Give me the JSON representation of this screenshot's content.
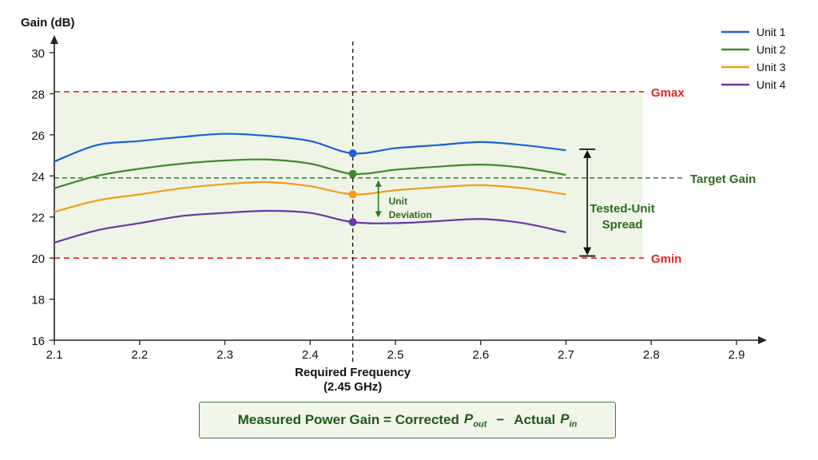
{
  "chart_data": {
    "type": "line",
    "title": "",
    "ylabel": "Gain (dB)",
    "xlabel": "Required Frequency",
    "xlabel_sub": "(2.45 GHz)",
    "xlim": [
      2.1,
      2.9
    ],
    "ylim": [
      16,
      30
    ],
    "xticks": [
      "2.1",
      "2.2",
      "2.3",
      "2.4",
      "2.5",
      "2.6",
      "2.7",
      "2.8",
      "2.9"
    ],
    "yticks": [
      "16",
      "18",
      "20",
      "22",
      "24",
      "26",
      "28",
      "30"
    ],
    "x": [
      2.1,
      2.15,
      2.2,
      2.25,
      2.3,
      2.35,
      2.4,
      2.45,
      2.5,
      2.55,
      2.6,
      2.65,
      2.7
    ],
    "series": [
      {
        "name": "Unit 1",
        "color": "#1f5fd6",
        "values": [
          24.7,
          25.5,
          25.7,
          25.9,
          26.05,
          25.95,
          25.7,
          25.1,
          25.35,
          25.5,
          25.65,
          25.5,
          25.25
        ]
      },
      {
        "name": "Unit 2",
        "color": "#3f8a2a",
        "values": [
          23.4,
          24.0,
          24.35,
          24.6,
          24.75,
          24.8,
          24.6,
          24.1,
          24.3,
          24.45,
          24.55,
          24.4,
          24.05
        ]
      },
      {
        "name": "Unit 3",
        "color": "#f59a1c",
        "values": [
          22.25,
          22.8,
          23.1,
          23.4,
          23.6,
          23.7,
          23.5,
          23.1,
          23.3,
          23.45,
          23.55,
          23.4,
          23.1
        ]
      },
      {
        "name": "Unit 4",
        "color": "#6a35a8",
        "values": [
          20.75,
          21.35,
          21.7,
          22.05,
          22.2,
          22.3,
          22.2,
          21.75,
          21.7,
          21.8,
          21.9,
          21.7,
          21.25
        ]
      }
    ],
    "marker_x": 2.45,
    "reference_lines": {
      "gmax": {
        "label": "Gmax",
        "value": 28.1,
        "color": "#e32424"
      },
      "gmin": {
        "label": "Gmin",
        "value": 20.0,
        "color": "#e32424"
      },
      "target": {
        "label": "Target Gain",
        "value": 23.9,
        "color": "#2e6a1f"
      }
    },
    "band": {
      "from": 20.0,
      "to": 28.1,
      "x_to": 2.79,
      "color": "#eef5e6"
    },
    "annotations": {
      "unit_deviation": {
        "line1": "Unit",
        "line2": "Deviation",
        "x": 2.48,
        "from": 23.9,
        "to": 22.05
      },
      "spread": {
        "line1": "Tested-Unit",
        "line2": "Spread",
        "x": 2.725,
        "from": 25.3,
        "to": 20.1
      }
    },
    "legend_position": "top-right",
    "grid": false
  },
  "formula": {
    "prefix": "Measured Power Gain = Corrected",
    "pout_p": "P",
    "pout_sub": "out",
    "minus": "−",
    "actual": "Actual",
    "pin_p": "P",
    "pin_sub": "in"
  }
}
